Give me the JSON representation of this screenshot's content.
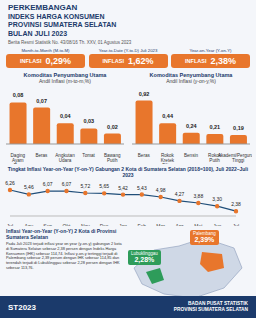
{
  "header": {
    "title": [
      "PERKEMBANGAN",
      "INDEKS HARGA KONSUMEN",
      "PROVINSI SUMATERA SELATAN",
      "BULAN JULI 2023"
    ],
    "subtitle": "Berita Resmi Statistik No. 43/08/16 Th. XXV, 01 Agustus 2023"
  },
  "indicators": [
    {
      "label": "Month-to-Month (M-to-M)",
      "status": "INFLASI",
      "value": 0.29,
      "value_label": "0,29%"
    },
    {
      "label": "Year-to-Date (Y-to-D) Juli 2023",
      "status": "INFLASI",
      "value": 1.62,
      "value_label": "1,62%"
    },
    {
      "label": "Year-on-Year (Y-on-Y)",
      "status": "INFLASI",
      "value": 2.38,
      "value_label": "2,38%"
    }
  ],
  "chart_data": [
    {
      "type": "bar",
      "title": "Komoditas Penyumbang Utama",
      "subtitle": "Andil Inflasi (m-to-m,%)",
      "categories": [
        "Daging Ayam Ras",
        "Beras",
        "Angkutan Udara",
        "Tomat",
        "Bawang Putih"
      ],
      "values": [
        0.08,
        0.07,
        0.04,
        0.03,
        0.02
      ],
      "value_labels": [
        "0,08",
        "0,07",
        "0,04",
        "0,03",
        "0,02"
      ],
      "color": "#e8762c",
      "ylim": [
        0,
        0.1
      ],
      "data_labels": true,
      "tick_labels": "x"
    },
    {
      "type": "bar",
      "title": "Komoditas Penyumbang Utama",
      "subtitle": "Andil Inflasi (y-on-y,%)",
      "categories": [
        "Beras",
        "Rokok Kretek Filter",
        "Bensin",
        "Rokok Putih",
        "Akademi/Perguruan Tinggi"
      ],
      "values": [
        0.92,
        0.44,
        0.24,
        0.21,
        0.19
      ],
      "value_labels": [
        "0,92",
        "0,44",
        "0,24",
        "0,21",
        "0,19"
      ],
      "color": "#e8762c",
      "ylim": [
        0,
        1.1
      ],
      "data_labels": true,
      "tick_labels": "x"
    },
    {
      "type": "line",
      "title": "Tingkat Inflasi Year-on-Year (Y-on-Y) Gabungan 2 Kota di Sumatera Selatan (2018=100), Juli 2022–Juli 2023",
      "categories": [
        "Jul",
        "Agu",
        "Sep",
        "Okt",
        "Nov",
        "Des",
        "Jan",
        "Feb",
        "Mar",
        "Apr",
        "Mei",
        "Jun",
        "Jul"
      ],
      "values": [
        6.26,
        5.46,
        6.07,
        6.07,
        5.72,
        5.65,
        5.42,
        5.43,
        4.98,
        4.27,
        3.88,
        3.3,
        2.38
      ],
      "value_labels": [
        "6,26",
        "5,46",
        "6,07",
        "6,07",
        "5,72",
        "5,65",
        "5,42",
        "5,43",
        "4,98",
        "4,27",
        "3,88",
        "3,30",
        "2,38"
      ],
      "color": "#1f4e79",
      "marker": "circle",
      "ylim": [
        1.5,
        7
      ],
      "data_labels": true,
      "tick_labels": "x"
    }
  ],
  "map": {
    "title": "Inflasi Year-on-Year (Y-on-Y) 2 Kota di Provinsi Sumatera Selatan",
    "text": "Pada Juli 2023 terjadi inflasi year on year (y-on-y) gabungan 2 kota di Sumatera Selatan sebesar 2,38 persen dengan Indeks Harga Konsumen (IHK) sebesar 114,74. Inflasi y-on-y tertinggi terjadi di Palembang sebesar 2,39 persen dengan IHK sebesar 114,85 dan terendah terjadi di Lubuklinggau sebesar 2,28 persen dengan IHK sebesar 113,76.",
    "cities": [
      {
        "name": "Palembang",
        "value": 2.39,
        "value_label": "2,39%",
        "color": "#e8762c"
      },
      {
        "name": "Lubuklinggau",
        "value": 2.28,
        "value_label": "2,28%",
        "color": "#2e9c5a"
      }
    ]
  },
  "footer": {
    "left": "ST2023",
    "right": [
      "BADAN PUSAT STATISTIK",
      "PROVINSI SUMATERA SELATAN"
    ]
  }
}
